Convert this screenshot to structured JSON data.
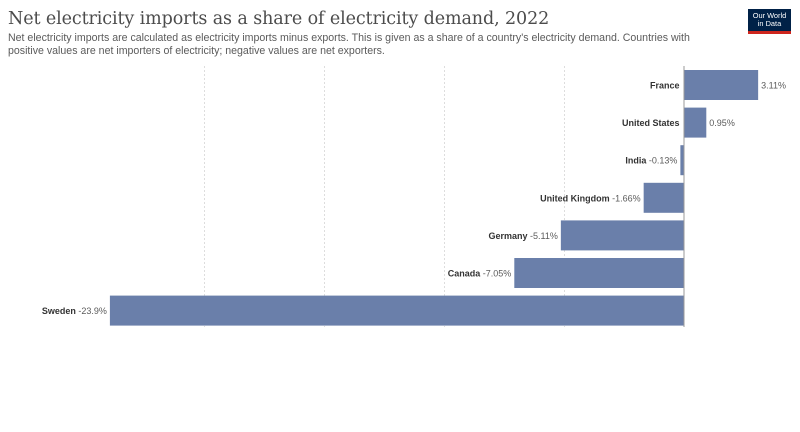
{
  "title": "Net electricity imports as a share of electricity demand, 2022",
  "subtitle": "Net electricity imports are calculated as electricity imports minus exports. This is given as a share of a country's electricity demand. Countries with positive values are net importers of electricity; negative values are net exporters.",
  "logo": {
    "line1": "Our World",
    "line2": "in Data"
  },
  "colors": {
    "bar": "#6a7faa",
    "grid": "#dddddd",
    "axis": "#999999",
    "label": "#333333",
    "value": "#5b5b5b"
  },
  "chart_data": {
    "type": "bar",
    "orientation": "horizontal",
    "categories": [
      "France",
      "United States",
      "India",
      "United Kingdom",
      "Germany",
      "Canada",
      "Sweden"
    ],
    "values": [
      3.11,
      0.95,
      -0.13,
      -1.66,
      -5.11,
      -7.05,
      -23.9
    ],
    "value_labels": [
      "3.11%",
      "0.95%",
      "-0.13%",
      "-1.66%",
      "-5.11%",
      "-7.05%",
      "-23.9%"
    ],
    "xlim": [
      -23.9,
      3.11
    ],
    "gridlines": [
      -20,
      -15,
      -10,
      -5
    ],
    "grid": true,
    "title": "Net electricity imports as a share of electricity demand, 2022"
  }
}
